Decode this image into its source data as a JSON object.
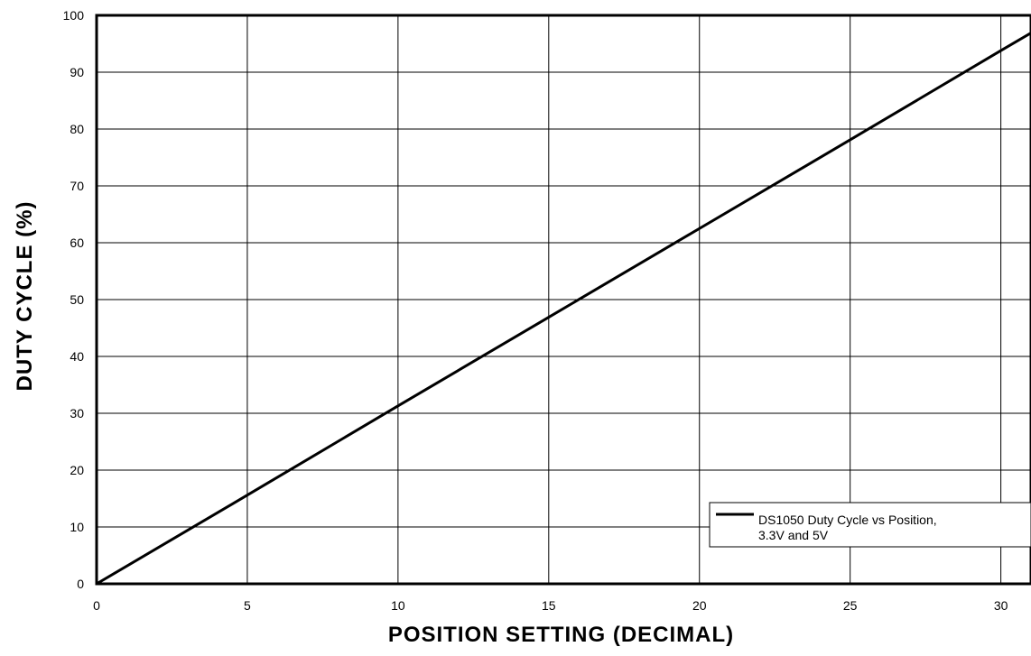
{
  "chart_data": {
    "type": "line",
    "title": "",
    "xlabel": "POSITION SETTING (DECIMAL)",
    "ylabel": "DUTY CYCLE (%)",
    "xlim": [
      0,
      31
    ],
    "ylim": [
      0,
      100
    ],
    "x_ticks": [
      0,
      5,
      10,
      15,
      20,
      25,
      30
    ],
    "y_ticks": [
      0,
      10,
      20,
      30,
      40,
      50,
      60,
      70,
      80,
      90,
      100
    ],
    "grid": true,
    "legend_position": "bottom-right",
    "series": [
      {
        "name": "DS1050 Duty Cycle vs Position, 3.3V and 5V",
        "color": "#000000",
        "x": [
          0,
          5,
          10,
          15,
          20,
          25,
          30,
          31
        ],
        "y": [
          0,
          15.6,
          31.3,
          46.9,
          62.5,
          78.1,
          93.8,
          96.9
        ]
      }
    ]
  }
}
